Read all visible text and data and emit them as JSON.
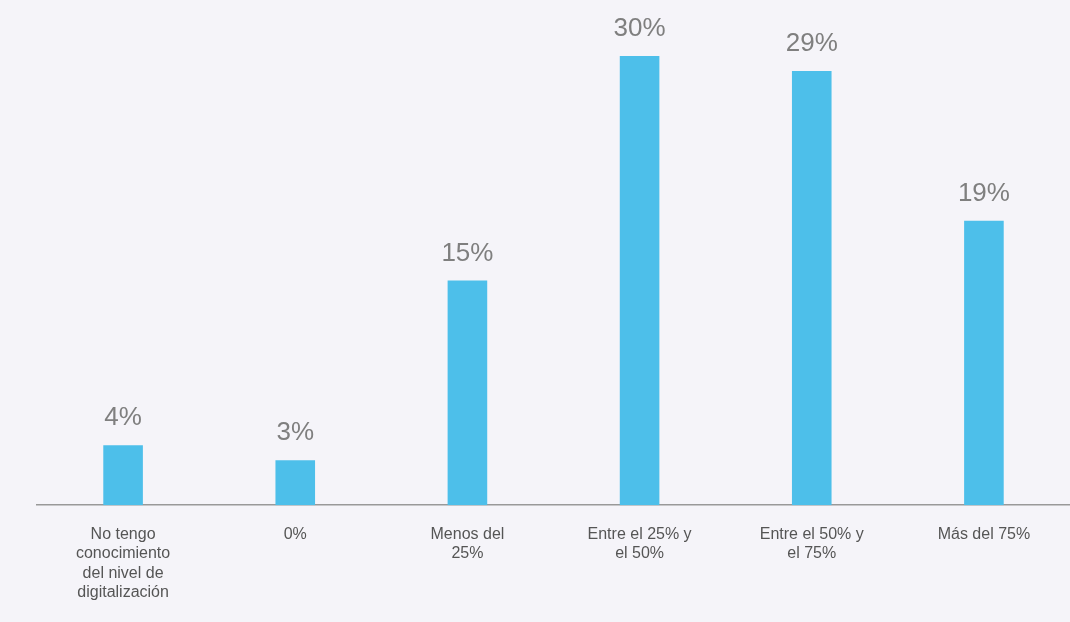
{
  "chart_data": {
    "type": "bar",
    "categories": [
      "No tengo conocimiento del nivel de digitalización",
      "0%",
      "Menos del 25%",
      "Entre el 25% y el 50%",
      "Entre el 50% y el 75%",
      "Más del 75%"
    ],
    "values": [
      4,
      3,
      15,
      30,
      29,
      19
    ],
    "value_labels": [
      "4%",
      "3%",
      "15%",
      "30%",
      "29%",
      "19%"
    ],
    "color": "#4dbfea",
    "grid": false,
    "legend": false
  }
}
